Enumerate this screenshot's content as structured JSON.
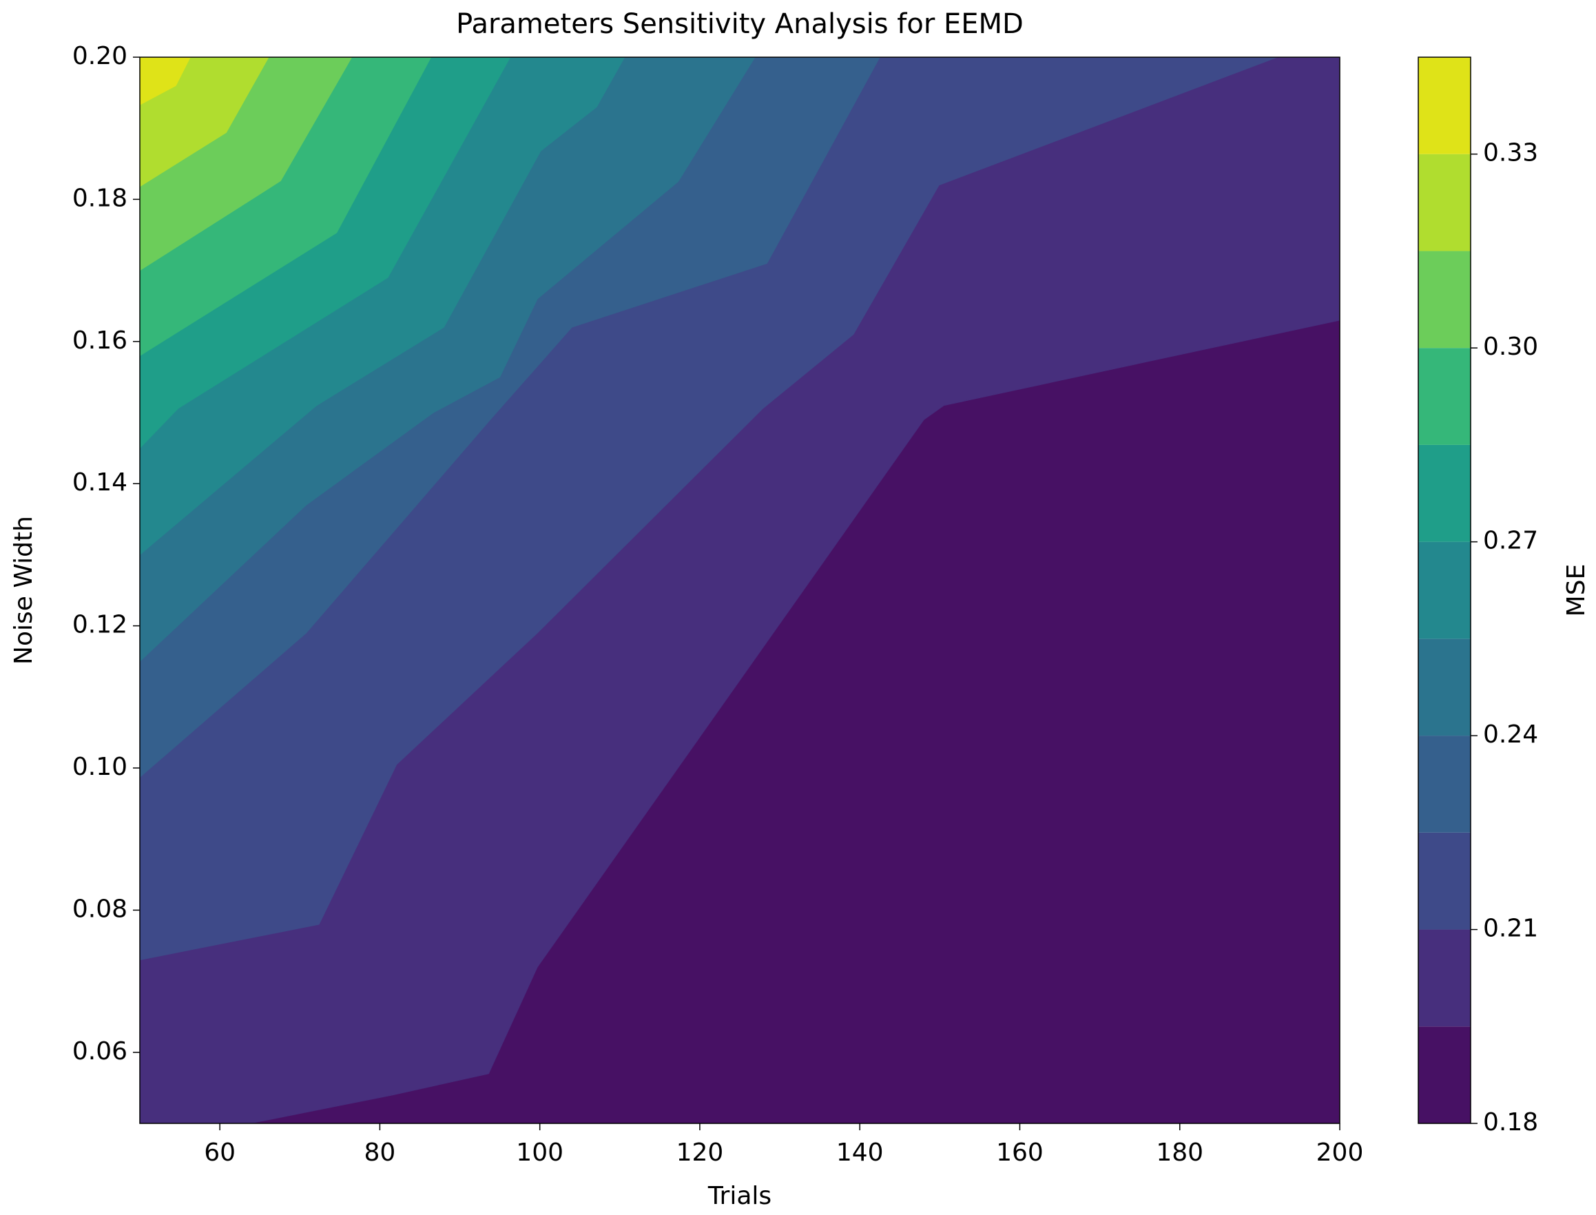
{
  "chart_data": {
    "type": "contour",
    "title": "Parameters Sensitivity Analysis for EEMD",
    "xlabel": "Trials",
    "ylabel": "Noise Width",
    "colorbar_label": "MSE",
    "xlim": [
      50,
      200
    ],
    "ylim": [
      0.05,
      0.2
    ],
    "xticks": [
      60,
      80,
      100,
      120,
      140,
      160,
      180,
      200
    ],
    "yticks": [
      0.06,
      0.08,
      {
        "value": 0.1,
        "label": "0.10"
      },
      0.12,
      0.14,
      0.16,
      0.18,
      {
        "value": 0.2,
        "label": "0.20"
      }
    ],
    "clim": [
      0.18,
      0.345
    ],
    "cticks": [
      0.18,
      0.21,
      0.24,
      0.27,
      {
        "value": 0.3,
        "label": "0.30"
      },
      0.33
    ],
    "levels": [
      0.18,
      0.195,
      0.21,
      0.225,
      0.24,
      0.255,
      0.27,
      0.285,
      0.3,
      0.315,
      0.33,
      0.345
    ],
    "colors": [
      "#471164",
      "#472f7d",
      "#3e4a89",
      "#35608d",
      "#2b748e",
      "#23888e",
      "#1f9e89",
      "#35b779",
      "#6ccd5a",
      "#b0dd2f",
      "#dfe318"
    ],
    "contours": [
      {
        "level": 0.195,
        "x": [
          63.8,
          81.6,
          93.6,
          99.7,
          148,
          150.5,
          200
        ],
        "y": [
          0.05,
          0.054,
          0.057,
          0.072,
          0.149,
          0.151,
          0.163
        ]
      },
      {
        "level": 0.21,
        "x": [
          50,
          72.4,
          82.1,
          99.7,
          127.9,
          139.2,
          149.9,
          192.2
        ],
        "y": [
          0.073,
          0.078,
          0.1005,
          0.119,
          0.1506,
          0.161,
          0.182,
          0.2
        ]
      },
      {
        "level": 0.225,
        "x": [
          50,
          70.8,
          93.8,
          104,
          128.4,
          142.5
        ],
        "y": [
          0.0987,
          0.119,
          0.149,
          0.162,
          0.171,
          0.2
        ]
      },
      {
        "level": 0.24,
        "x": [
          50,
          70.8,
          86.7,
          95,
          99.7,
          117.3,
          126.9
        ],
        "y": [
          0.115,
          0.137,
          0.15,
          0.155,
          0.166,
          0.1825,
          0.2
        ]
      },
      {
        "level": 0.255,
        "x": [
          50,
          72.1,
          88,
          100.1,
          107.1,
          110.6
        ],
        "y": [
          0.13,
          0.151,
          0.162,
          0.1868,
          0.193,
          0.2
        ]
      },
      {
        "level": 0.27,
        "x": [
          50,
          54.8,
          81,
          96.3
        ],
        "y": [
          0.145,
          0.1506,
          0.169,
          0.2
        ]
      },
      {
        "level": 0.285,
        "x": [
          50,
          74.6,
          86.4
        ],
        "y": [
          0.158,
          0.1753,
          0.2
        ]
      },
      {
        "level": 0.3,
        "x": [
          50,
          67.6,
          76.5
        ],
        "y": [
          0.17,
          0.1826,
          0.2
        ]
      },
      {
        "level": 0.315,
        "x": [
          50,
          60.8,
          66.1
        ],
        "y": [
          0.1818,
          0.1894,
          0.2
        ]
      },
      {
        "level": 0.33,
        "x": [
          50,
          54.5,
          56.3
        ],
        "y": [
          0.1933,
          0.196,
          0.2
        ]
      }
    ]
  }
}
